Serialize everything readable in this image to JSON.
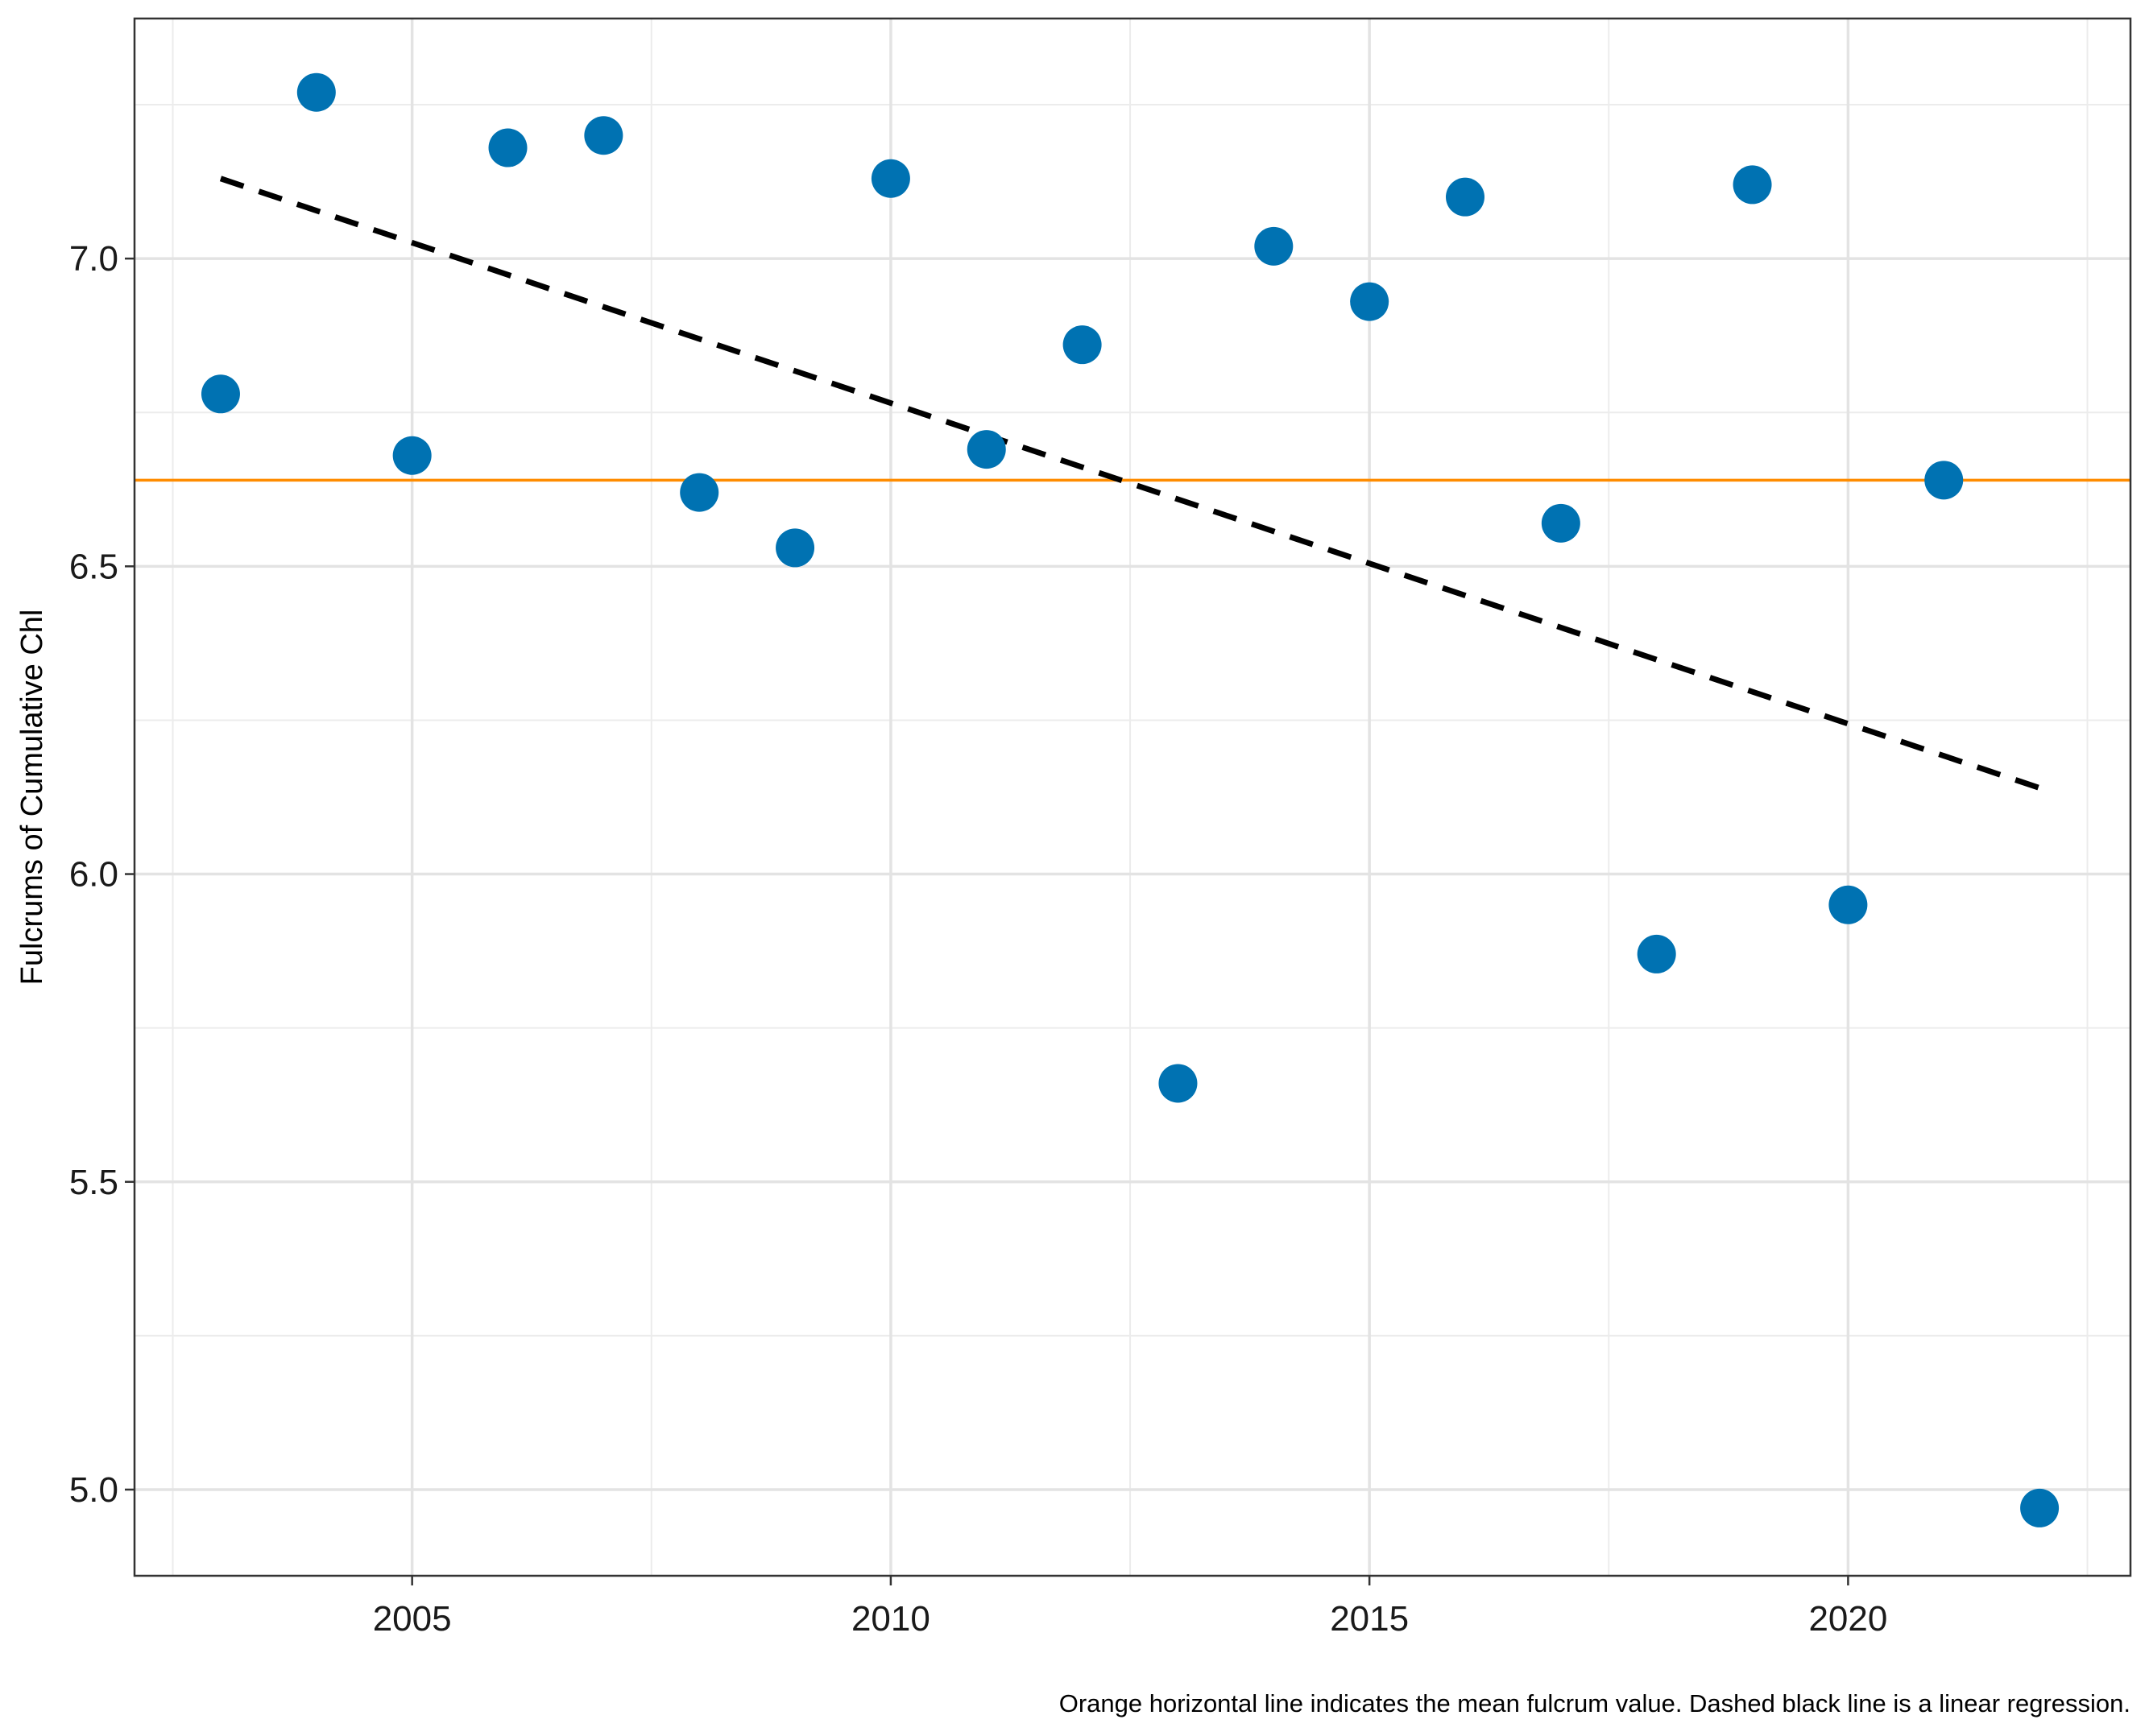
{
  "chart_data": {
    "type": "scatter",
    "title": "",
    "xlabel": "",
    "ylabel": "Fulcrums of Cumulative Chl",
    "caption": "Orange horizontal line indicates the mean fulcrum value. Dashed black line is a linear regression.",
    "xlim": [
      2002.1,
      2022.95
    ],
    "ylim": [
      4.86,
      7.39
    ],
    "x_ticks": [
      2005,
      2010,
      2015,
      2020
    ],
    "x_tick_labels": [
      "2005",
      "2010",
      "2015",
      "2020"
    ],
    "x_minor_ticks": [
      2002.5,
      2007.5,
      2012.5,
      2017.5,
      2022.5
    ],
    "y_ticks": [
      5.0,
      5.5,
      6.0,
      6.5,
      7.0
    ],
    "y_tick_labels": [
      "5.0",
      "5.5",
      "6.0",
      "6.5",
      "7.0"
    ],
    "y_minor_ticks": [
      5.25,
      5.75,
      6.25,
      6.75,
      7.25
    ],
    "grid": true,
    "series": [
      {
        "x": [
          2003,
          2004,
          2005,
          2006,
          2007,
          2008,
          2009,
          2010,
          2011,
          2012,
          2013,
          2014,
          2015,
          2016,
          2017,
          2018,
          2019,
          2020,
          2021,
          2022
        ],
        "y": [
          6.78,
          7.27,
          6.68,
          7.18,
          7.2,
          6.62,
          6.53,
          7.13,
          6.69,
          6.86,
          5.66,
          7.02,
          6.93,
          7.1,
          6.57,
          5.87,
          7.12,
          5.95,
          6.64,
          4.97
        ],
        "color": "#0072B2"
      }
    ],
    "mean_line": {
      "y": 6.64,
      "color": "#FF8C00",
      "style": "solid"
    },
    "regression_line": {
      "x": [
        2003,
        2022
      ],
      "y": [
        7.13,
        6.14
      ],
      "color": "#000000",
      "style": "dashed"
    }
  }
}
